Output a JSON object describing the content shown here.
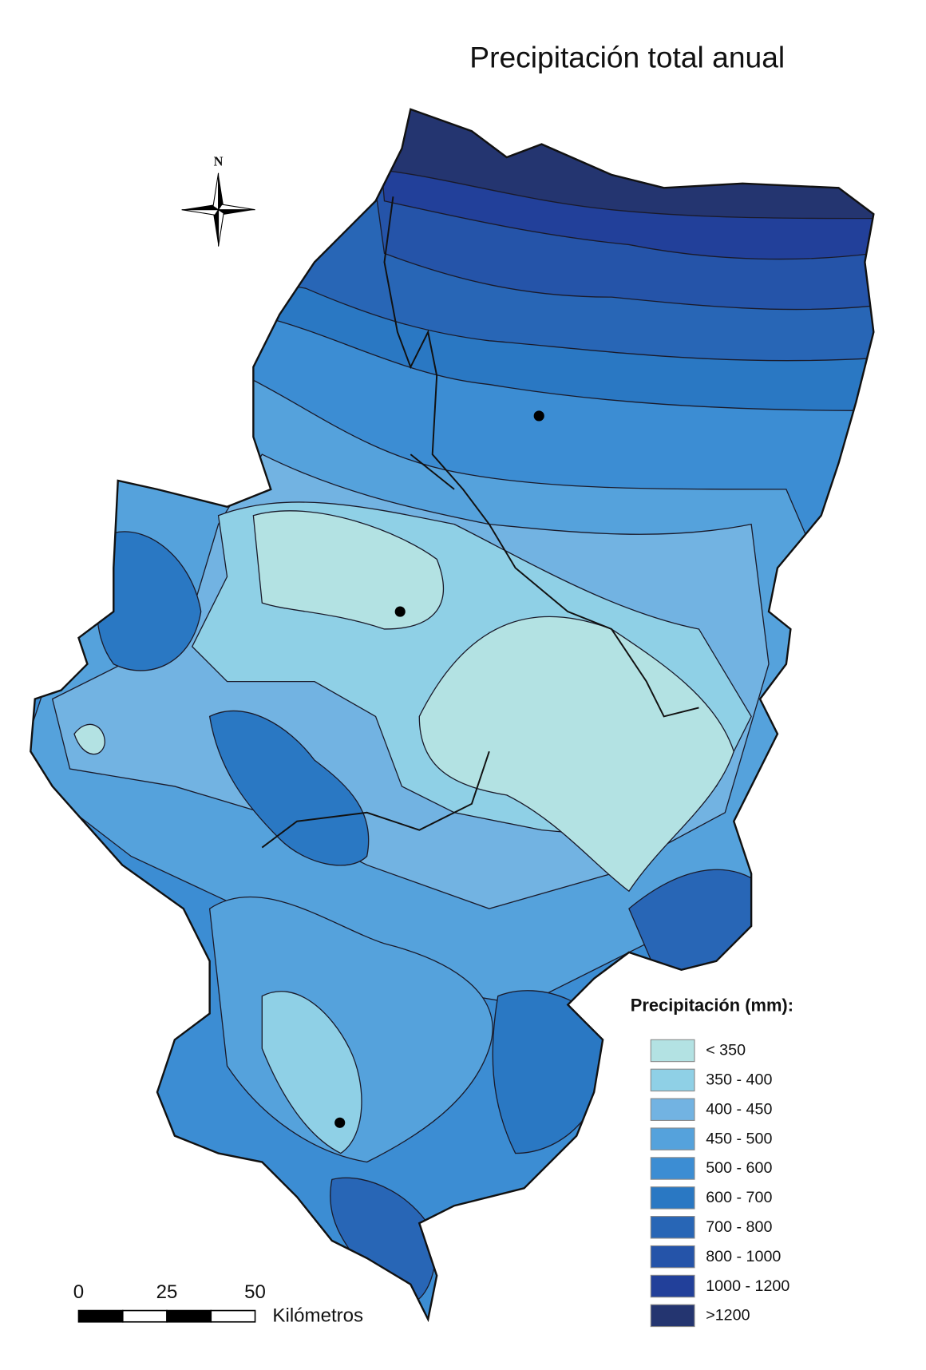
{
  "map": {
    "title": "Precipitación total anual",
    "compass": "N"
  },
  "legend": {
    "title": "Precipitación (mm):",
    "items": [
      {
        "label": "< 350",
        "color": "#b3e2e3"
      },
      {
        "label": "350 - 400",
        "color": "#8fd0e6"
      },
      {
        "label": "400 - 450",
        "color": "#72b3e2"
      },
      {
        "label": "450 - 500",
        "color": "#55a2dc"
      },
      {
        "label": "500 - 600",
        "color": "#3c8dd3"
      },
      {
        "label": "600 - 700",
        "color": "#2a78c3"
      },
      {
        "label": "700 - 800",
        "color": "#2866b6"
      },
      {
        "label": "800 - 1000",
        "color": "#2554a9"
      },
      {
        "label": "1000 - 1200",
        "color": "#22409a"
      },
      {
        "label": ">1200",
        "color": "#243570"
      }
    ]
  },
  "scale": {
    "labels": [
      "0",
      "25",
      "50"
    ],
    "unit": "Kilómetros"
  }
}
